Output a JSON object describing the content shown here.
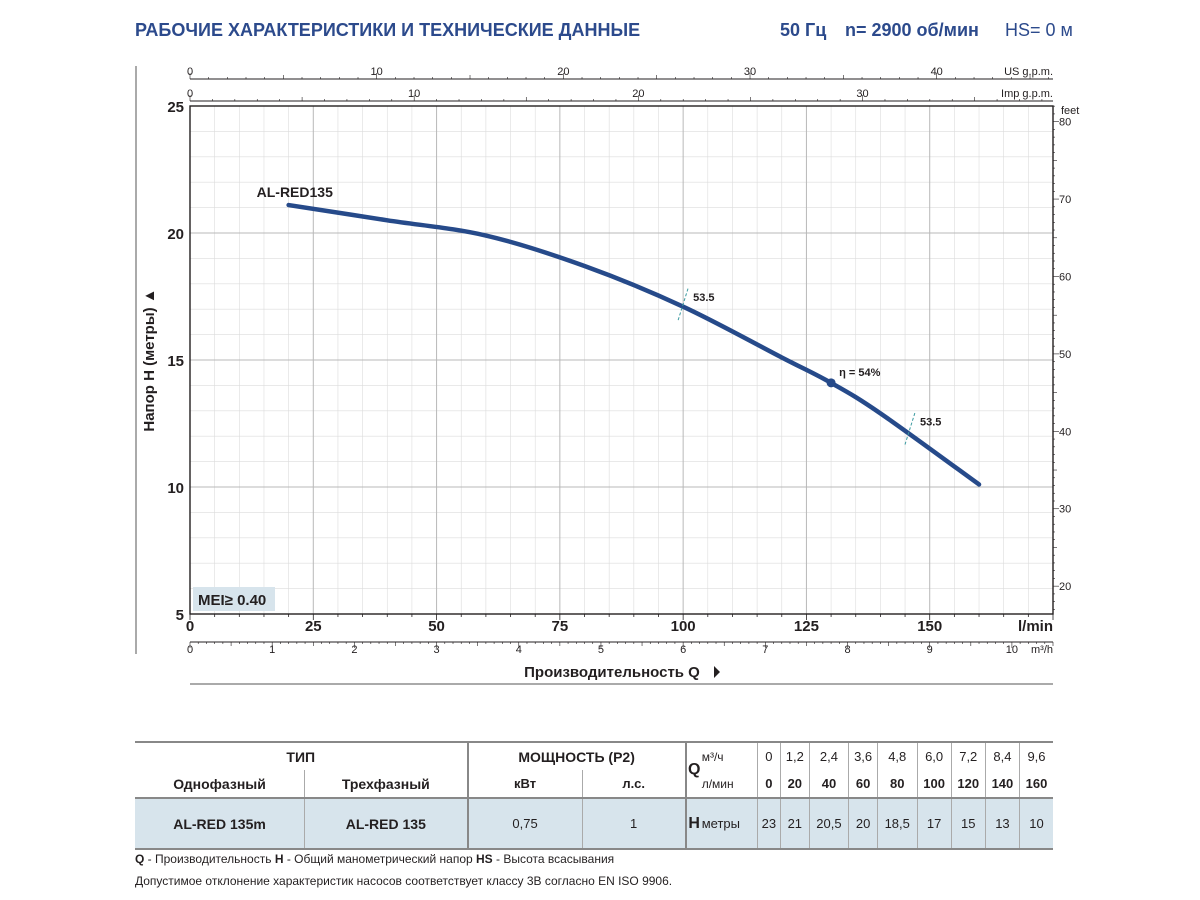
{
  "header": {
    "title": "РАБОЧИЕ ХАРАКТЕРИСТИКИ И ТЕХНИЧЕСКИЕ ДАННЫЕ",
    "freq": "50 Гц",
    "speed": "n= 2900 об/мин",
    "hs": "HS= 0 м"
  },
  "chart_data": {
    "type": "line",
    "ylabel": "Напор H (метры)",
    "xlabel": "Производительность Q",
    "x_unit": "l/min",
    "x2_unit": "m³/h",
    "top_unit_us": "US g.p.m.",
    "top_unit_imp": "Imp g.p.m.",
    "right_unit": "feet",
    "xlim": [
      0,
      175
    ],
    "ylim": [
      5,
      25
    ],
    "x_ticks": [
      0,
      25,
      50,
      75,
      100,
      125,
      150
    ],
    "y_ticks": [
      5,
      10,
      15,
      20,
      25
    ],
    "m3h_ticks": [
      0,
      1,
      2,
      3,
      4,
      5,
      6,
      7,
      8,
      9,
      10
    ],
    "us_gpm_ticks": [
      0,
      10,
      20,
      30,
      40
    ],
    "imp_gpm_ticks": [
      0,
      10,
      20,
      30
    ],
    "feet_ticks": [
      20,
      30,
      40,
      50,
      60,
      70,
      80
    ],
    "series": [
      {
        "name": "AL-RED135",
        "x": [
          20,
          40,
          60,
          80,
          100,
          120,
          130,
          140,
          160
        ],
        "y": [
          21.1,
          20.5,
          19.9,
          18.7,
          17.1,
          15.1,
          14.1,
          12.9,
          10.1
        ]
      }
    ],
    "efficiency_marks": [
      {
        "label": "53.5",
        "x": 100,
        "y": 17.2
      },
      {
        "label": "53.5",
        "x": 146,
        "y": 12.3
      }
    ],
    "best_point": {
      "label": "η = 54%",
      "x": 130,
      "y": 14.1
    },
    "mei_badge": "MEI≥ 0.40"
  },
  "table": {
    "head_type": "ТИП",
    "head_power": "МОЩНОСТЬ (P2)",
    "q_letter": "Q",
    "m3h_label": "м³/ч",
    "lmin_label": "л/мин",
    "single_phase": "Однофазный",
    "three_phase": "Трехфазный",
    "kw": "кВт",
    "hp": "л.с.",
    "m3h_values": [
      "0",
      "1,2",
      "2,4",
      "3,6",
      "4,8",
      "6,0",
      "7,2",
      "8,4",
      "9,6"
    ],
    "lmin_values": [
      "0",
      "20",
      "40",
      "60",
      "80",
      "100",
      "120",
      "140",
      "160"
    ],
    "model_single": "AL-RED 135m",
    "model_three": "AL-RED 135",
    "power_kw": "0,75",
    "power_hp": "1",
    "h_letter": "H",
    "h_unit": "метры",
    "h_values": [
      "23",
      "21",
      "20,5",
      "20",
      "18,5",
      "17",
      "15",
      "13",
      "10"
    ]
  },
  "footnotes": {
    "q_key": "Q",
    "q_text": " - Производительность  ",
    "h_key": "H",
    "h_text": " - Общий манометрический напор  ",
    "hs_key": "HS",
    "hs_text": " - Высота всасывания",
    "tolerance": "Допустимое отклонение характеристик насосов соответствует классу 3B согласно EN ISO 9906."
  },
  "colors": {
    "curve": "#264a8a",
    "header": "#2c4a8c",
    "grid_major": "#b8b8b8",
    "grid_minor": "#dcdcdc",
    "mei_bg": "#d7e4ec",
    "eff_mark": "#3a9aa0"
  }
}
